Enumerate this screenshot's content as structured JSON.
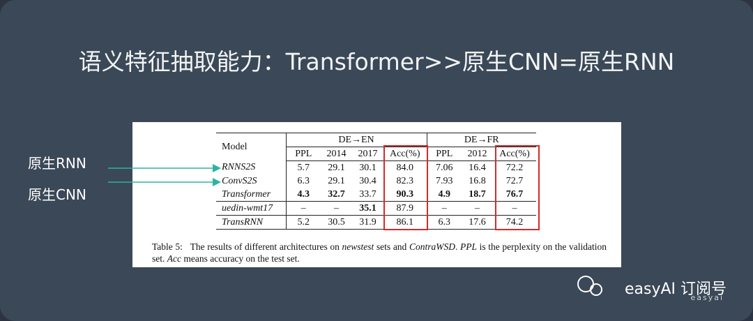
{
  "title": "语义特征抽取能力：Transformer>>原生CNN=原生RNN",
  "side_labels": [
    "原生RNN",
    "原生CNN"
  ],
  "table": {
    "corner": "Model",
    "groups": [
      "DE→EN",
      "DE→FR"
    ],
    "columns": [
      "PPL",
      "2014",
      "2017",
      "Acc(%)",
      "PPL",
      "2012",
      "Acc(%)"
    ],
    "rows": [
      {
        "model": "RNNS2S",
        "cells": [
          "5.7",
          "29.1",
          "30.1",
          "84.0",
          "7.06",
          "16.4",
          "72.2"
        ],
        "bold": []
      },
      {
        "model": "ConvS2S",
        "cells": [
          "6.3",
          "29.1",
          "30.4",
          "82.3",
          "7.93",
          "16.8",
          "72.7"
        ],
        "bold": []
      },
      {
        "model": "Transformer",
        "cells": [
          "4.3",
          "32.7",
          "33.7",
          "90.3",
          "4.9",
          "18.7",
          "76.7"
        ],
        "bold": [
          0,
          1,
          3,
          4,
          5,
          6
        ]
      },
      {
        "model": "uedin-wmt17",
        "cells": [
          "–",
          "–",
          "35.1",
          "87.9",
          "–",
          "–",
          "–"
        ],
        "bold": [
          2
        ]
      },
      {
        "model": "TransRNN",
        "cells": [
          "5.2",
          "30.5",
          "31.9",
          "86.1",
          "6.3",
          "17.6",
          "74.2"
        ],
        "bold": []
      }
    ]
  },
  "caption": [
    {
      "text": "Table 5:   The results of different architectures on ",
      "italic": false
    },
    {
      "text": "newstest",
      "italic": true
    },
    {
      "text": " sets and ",
      "italic": false
    },
    {
      "text": "ContraWSD",
      "italic": true
    },
    {
      "text": ". ",
      "italic": false
    },
    {
      "text": "PPL",
      "italic": true
    },
    {
      "text": " is the perplexity on the validation set. ",
      "italic": false
    },
    {
      "text": "Acc",
      "italic": true
    },
    {
      "text": " means accuracy on the test set.",
      "italic": false
    }
  ],
  "watermark": {
    "brand": "easyAI 订阅号",
    "logo_text": "easyai"
  }
}
